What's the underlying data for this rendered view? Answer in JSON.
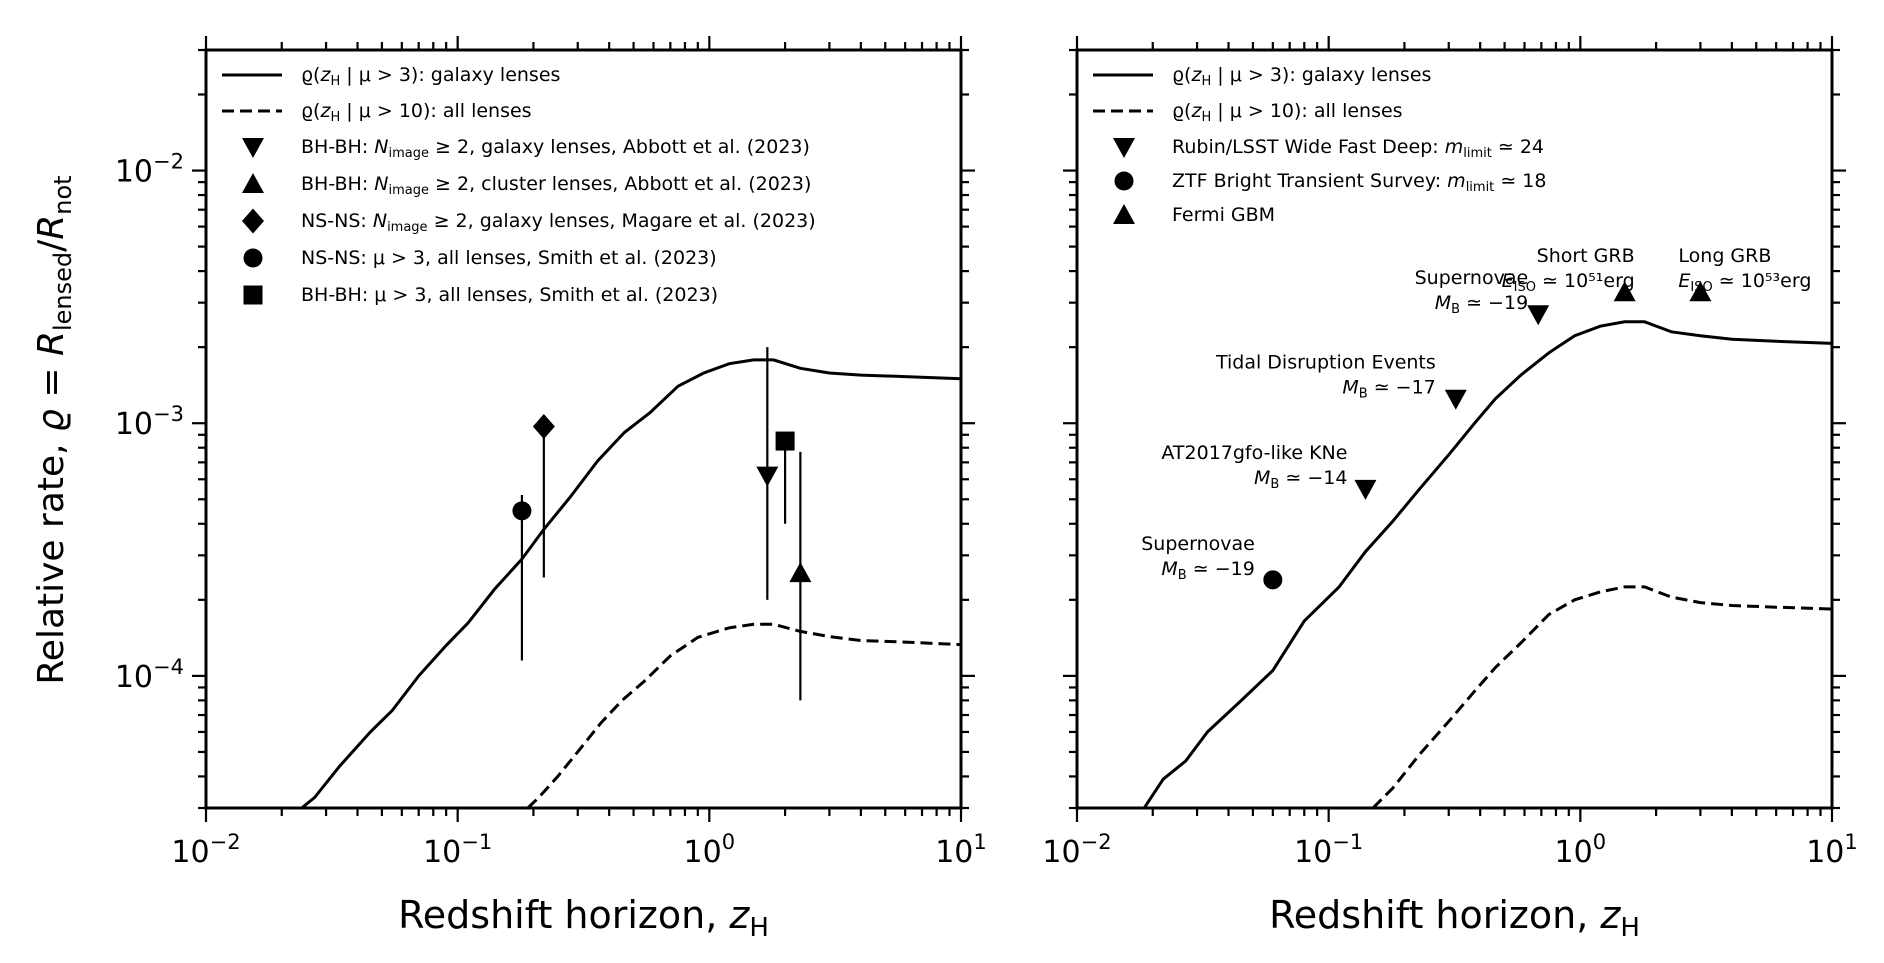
{
  "figure": {
    "ylabel": "Relative rate, ϱ = R_lensed/R_not",
    "ylabel_parts": [
      "Relative rate, ",
      "ϱ",
      " = ",
      "R",
      "lensed",
      "/",
      "R",
      "not"
    ]
  },
  "chart_data": [
    {
      "type": "line",
      "panel": "left",
      "title": "",
      "xlabel": "Redshift horizon, z_H",
      "xscale": "log",
      "yscale": "log",
      "xlim": [
        0.01,
        10
      ],
      "ylim": [
        3e-05,
        0.03
      ],
      "x_ticks": [
        {
          "value": 0.01,
          "mantissa": "10",
          "exponent": "−2"
        },
        {
          "value": 0.1,
          "mantissa": "10",
          "exponent": "−1"
        },
        {
          "value": 1,
          "mantissa": "10",
          "exponent": "0"
        },
        {
          "value": 10,
          "mantissa": "10",
          "exponent": "1"
        }
      ],
      "y_ticks": [
        {
          "value": 0.0001,
          "mantissa": "10",
          "exponent": "−4"
        },
        {
          "value": 0.001,
          "mantissa": "10",
          "exponent": "−3"
        },
        {
          "value": 0.01,
          "mantissa": "10",
          "exponent": "−2"
        }
      ],
      "series": [
        {
          "name": "ϱ(z_H | μ > 3): galaxy lenses",
          "style": "solid",
          "legend": {
            "lead": "ϱ(",
            "var": "z",
            "sub": "H",
            "tail": " | μ > 3): galaxy lenses"
          },
          "x": [
            0.01,
            0.024,
            0.027,
            0.034,
            0.045,
            0.055,
            0.07,
            0.09,
            0.11,
            0.14,
            0.18,
            0.22,
            0.28,
            0.36,
            0.46,
            0.58,
            0.75,
            0.95,
            1.2,
            1.5,
            1.8,
            2.3,
            3,
            4,
            6,
            10
          ],
          "y": [
            3e-05,
            3e-05,
            3.3e-05,
            4.4e-05,
            6e-05,
            7.3e-05,
            0.0001,
            0.000132,
            0.000162,
            0.00022,
            0.00029,
            0.00038,
            0.00051,
            0.00071,
            0.00092,
            0.0011,
            0.0014,
            0.00158,
            0.00172,
            0.00178,
            0.00178,
            0.00165,
            0.00158,
            0.00155,
            0.00153,
            0.0015
          ]
        },
        {
          "name": "ϱ(z_H | μ > 10): all lenses",
          "style": "dashed",
          "legend": {
            "lead": "ϱ(",
            "var": "z",
            "sub": "H",
            "tail": " | μ > 10): all lenses"
          },
          "x": [
            0.19,
            0.21,
            0.25,
            0.3,
            0.37,
            0.45,
            0.55,
            0.7,
            0.9,
            1.2,
            1.5,
            1.8,
            2.3,
            3,
            4,
            6,
            10
          ],
          "y": [
            3e-05,
            3.3e-05,
            4e-05,
            5e-05,
            6.5e-05,
            8e-05,
            9.5e-05,
            0.00012,
            0.000142,
            0.000155,
            0.00016,
            0.00016,
            0.00015,
            0.000143,
            0.000138,
            0.000136,
            0.000133
          ]
        }
      ],
      "points": [
        {
          "name": "BH-BH: N_image ≥ 2, galaxy lenses, Abbott et al. (2023)",
          "marker": "triangle-down",
          "x": 1.7,
          "y": 0.00062,
          "yerr_low": 0.0002,
          "yerr_high": 0.002,
          "legend": {
            "lead": "BH-BH: ",
            "var": "N",
            "sub": "image",
            "tail": " ≥ 2, galaxy lenses, Abbott et al. (2023)"
          }
        },
        {
          "name": "BH-BH: N_image ≥ 2, cluster lenses, Abbott et al. (2023)",
          "marker": "triangle-up",
          "x": 2.3,
          "y": 0.000255,
          "yerr_low": 8e-05,
          "yerr_high": 0.00077,
          "legend": {
            "lead": "BH-BH: ",
            "var": "N",
            "sub": "image",
            "tail": " ≥ 2, cluster lenses, Abbott et al. (2023)"
          }
        },
        {
          "name": "NS-NS: N_image ≥ 2, galaxy lenses, Magare et al. (2023)",
          "marker": "diamond",
          "x": 0.22,
          "y": 0.00097,
          "yerr_low": 0.000245,
          "yerr_high": 0.00097,
          "legend": {
            "lead": "NS-NS: ",
            "var": "N",
            "sub": "image",
            "tail": " ≥ 2, galaxy lenses, Magare et al. (2023)"
          }
        },
        {
          "name": "NS-NS: μ > 3, all lenses, Smith et al. (2023)",
          "marker": "circle",
          "x": 0.18,
          "y": 0.00045,
          "yerr_low": 0.000115,
          "yerr_high": 0.00052,
          "legend": {
            "lead": "NS-NS: μ > 3, all lenses, Smith et al. (2023)",
            "var": "",
            "sub": "",
            "tail": ""
          }
        },
        {
          "name": "BH-BH: μ > 3, all lenses, Smith et al. (2023)",
          "marker": "square",
          "x": 2.0,
          "y": 0.00085,
          "yerr_low": 0.0004,
          "yerr_high": 0.00085,
          "legend": {
            "lead": "BH-BH: μ > 3, all lenses, Smith et al. (2023)",
            "var": "",
            "sub": "",
            "tail": ""
          }
        }
      ]
    },
    {
      "type": "line",
      "panel": "right",
      "title": "",
      "xlabel": "Redshift horizon, z_H",
      "xscale": "log",
      "yscale": "log",
      "xlim": [
        0.01,
        10
      ],
      "ylim": [
        3e-05,
        0.03
      ],
      "x_ticks": [
        {
          "value": 0.01,
          "mantissa": "10",
          "exponent": "−2"
        },
        {
          "value": 0.1,
          "mantissa": "10",
          "exponent": "−1"
        },
        {
          "value": 1,
          "mantissa": "10",
          "exponent": "0"
        },
        {
          "value": 10,
          "mantissa": "10",
          "exponent": "1"
        }
      ],
      "series": [
        {
          "name": "ϱ(z_H | μ > 3): galaxy lenses",
          "style": "solid",
          "legend": {
            "lead": "ϱ(",
            "var": "z",
            "sub": "H",
            "tail": " | μ > 3): galaxy lenses"
          },
          "x": [
            0.0185,
            0.022,
            0.027,
            0.033,
            0.045,
            0.06,
            0.08,
            0.11,
            0.14,
            0.18,
            0.23,
            0.3,
            0.38,
            0.46,
            0.58,
            0.75,
            0.95,
            1.2,
            1.5,
            1.8,
            2.3,
            3,
            4,
            6,
            10
          ],
          "y": [
            3e-05,
            3.9e-05,
            4.6e-05,
            6e-05,
            8e-05,
            0.000105,
            0.000165,
            0.000225,
            0.00031,
            0.00041,
            0.00055,
            0.00075,
            0.001,
            0.00125,
            0.00155,
            0.0019,
            0.00222,
            0.00242,
            0.00252,
            0.00252,
            0.0023,
            0.00222,
            0.00215,
            0.00211,
            0.00207
          ]
        },
        {
          "name": "ϱ(z_H | μ > 10): all lenses",
          "style": "dashed",
          "legend": {
            "lead": "ϱ(",
            "var": "z",
            "sub": "H",
            "tail": " | μ > 10): all lenses"
          },
          "x": [
            0.15,
            0.18,
            0.23,
            0.3,
            0.38,
            0.46,
            0.58,
            0.75,
            0.95,
            1.2,
            1.5,
            1.8,
            2.3,
            3,
            4,
            6,
            10
          ],
          "y": [
            3e-05,
            3.6e-05,
            4.9e-05,
            6.6e-05,
            8.7e-05,
            0.000108,
            0.000135,
            0.000175,
            0.0002,
            0.000215,
            0.000225,
            0.000225,
            0.000205,
            0.000195,
            0.00019,
            0.000187,
            0.000184
          ]
        }
      ],
      "points": [
        {
          "name": "Supernovae (Rubin/LSST)",
          "marker": "triangle-down",
          "x": 0.68,
          "y": 0.0027,
          "label1": "Supernovae",
          "label2_lead": "M",
          "label2_sub": "B",
          "label2_tail": " ≃ −19",
          "anchor": "end",
          "label_dx": -10
        },
        {
          "name": "Tidal Disruption Events",
          "marker": "triangle-down",
          "x": 0.32,
          "y": 0.00125,
          "label1": "Tidal Disruption Events",
          "label2_lead": "M",
          "label2_sub": "B",
          "label2_tail": " ≃ −17",
          "anchor": "end",
          "label_dx": -20
        },
        {
          "name": "AT2017gfo-like KNe",
          "marker": "triangle-down",
          "x": 0.14,
          "y": 0.00055,
          "label1": "AT2017gfo-like KNe",
          "label2_lead": "M",
          "label2_sub": "B",
          "label2_tail": " ≃ −14",
          "anchor": "end",
          "label_dx": -18
        },
        {
          "name": "Supernovae (ZTF BTS)",
          "marker": "circle",
          "x": 0.06,
          "y": 0.00024,
          "label1": "Supernovae",
          "label2_lead": "M",
          "label2_sub": "B",
          "label2_tail": " ≃ −19",
          "anchor": "end",
          "label_dx": -18
        },
        {
          "name": "Short GRB",
          "marker": "triangle-up",
          "x": 1.5,
          "y": 0.0033,
          "label1": "Short GRB",
          "label2_lead": "E",
          "label2_sub": "ISO",
          "label2_tail": " ≃ 10⁵¹erg",
          "anchor": "end",
          "label_dx": 10
        },
        {
          "name": "Long GRB",
          "marker": "triangle-up",
          "x": 3.0,
          "y": 0.0033,
          "label1": "Long GRB",
          "label2_lead": "E",
          "label2_sub": "ISO",
          "label2_tail": " ≃ 10⁵³erg",
          "anchor": "start",
          "label_dx": -22
        }
      ],
      "legend_markers": [
        {
          "marker": "triangle-down",
          "lead": "Rubin/LSST Wide Fast Deep: ",
          "var": "m",
          "sub": "limit",
          "tail": " ≃ 24"
        },
        {
          "marker": "circle",
          "lead": "ZTF Bright Transient Survey: ",
          "var": "m",
          "sub": "limit",
          "tail": " ≃ 18"
        },
        {
          "marker": "triangle-up",
          "lead": "Fermi GBM",
          "var": "",
          "sub": "",
          "tail": ""
        }
      ]
    }
  ]
}
